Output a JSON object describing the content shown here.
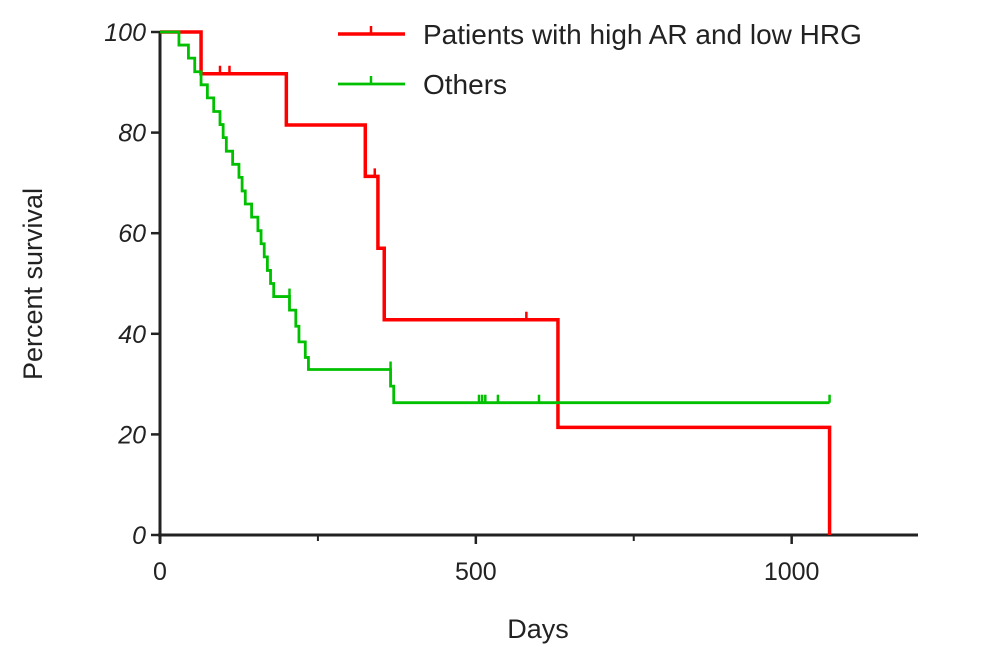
{
  "chart_data": {
    "type": "line",
    "subtype": "kaplan-meier-step",
    "title": "",
    "xlabel": "Days",
    "ylabel": "Percent survival",
    "xlim": [
      0,
      1200
    ],
    "ylim": [
      0,
      100
    ],
    "xticks": [
      "0",
      "500",
      "1000"
    ],
    "yticks": [
      "0",
      "20",
      "40",
      "60",
      "80",
      "100"
    ],
    "grid": false,
    "legend_position": "top-right",
    "series": [
      {
        "name": "Patients with high AR and low HRG",
        "color": "#ff0000",
        "steps": [
          [
            0,
            100
          ],
          [
            65,
            91.7
          ],
          [
            200,
            81.5
          ],
          [
            325,
            71.3
          ],
          [
            345,
            57
          ],
          [
            355,
            42.8
          ],
          [
            630,
            21.4
          ],
          [
            1060,
            0
          ]
        ],
        "censored": [
          [
            95,
            91.7
          ],
          [
            110,
            91.7
          ],
          [
            340,
            71.3
          ],
          [
            580,
            42.8
          ]
        ]
      },
      {
        "name": "Others",
        "color": "#00c000",
        "steps": [
          [
            0,
            100
          ],
          [
            30,
            97.4
          ],
          [
            45,
            94.8
          ],
          [
            55,
            92.1
          ],
          [
            65,
            89.5
          ],
          [
            75,
            86.9
          ],
          [
            85,
            84.2
          ],
          [
            95,
            81.6
          ],
          [
            100,
            79
          ],
          [
            105,
            76.3
          ],
          [
            115,
            73.7
          ],
          [
            125,
            71.1
          ],
          [
            130,
            68.4
          ],
          [
            135,
            65.8
          ],
          [
            145,
            63.2
          ],
          [
            155,
            60.5
          ],
          [
            160,
            57.9
          ],
          [
            165,
            55.3
          ],
          [
            170,
            52.6
          ],
          [
            175,
            50
          ],
          [
            180,
            47.4
          ],
          [
            205,
            44.7
          ],
          [
            215,
            41.5
          ],
          [
            220,
            38.4
          ],
          [
            230,
            35.3
          ],
          [
            235,
            32.9
          ],
          [
            365,
            29.6
          ],
          [
            370,
            26.3
          ]
        ],
        "censored": [
          [
            205,
            47.4
          ],
          [
            365,
            32.9
          ],
          [
            505,
            26.3
          ],
          [
            510,
            26.3
          ],
          [
            515,
            26.3
          ],
          [
            535,
            26.3
          ],
          [
            600,
            26.3
          ],
          [
            1060,
            26.3
          ]
        ]
      }
    ]
  }
}
